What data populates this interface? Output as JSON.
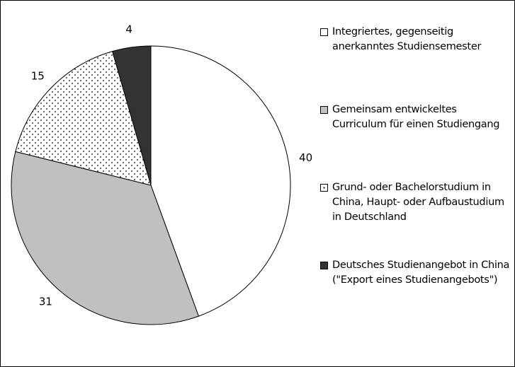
{
  "chart_data": {
    "type": "pie",
    "series": [
      {
        "name": "Integriertes, gegenseitig anerkanntes Studiensemester",
        "color": "#ffffff",
        "values": [
          40
        ]
      },
      {
        "name": "Gemeinsam entwickeltes Curriculum für einen Studiengang",
        "color": "#c0c0c0",
        "values": [
          31
        ]
      },
      {
        "name": "Grund- oder Bachelorstudium in China, Haupt- oder Aufbaustudium in Deutschland",
        "color": "#ffffff",
        "pattern": "dots",
        "values": [
          15
        ]
      },
      {
        "name": "Deutsches Studienangebot in China (\"Export eines Studienangebots\")",
        "color": "#333333",
        "values": [
          4
        ]
      }
    ],
    "legend": "right"
  }
}
